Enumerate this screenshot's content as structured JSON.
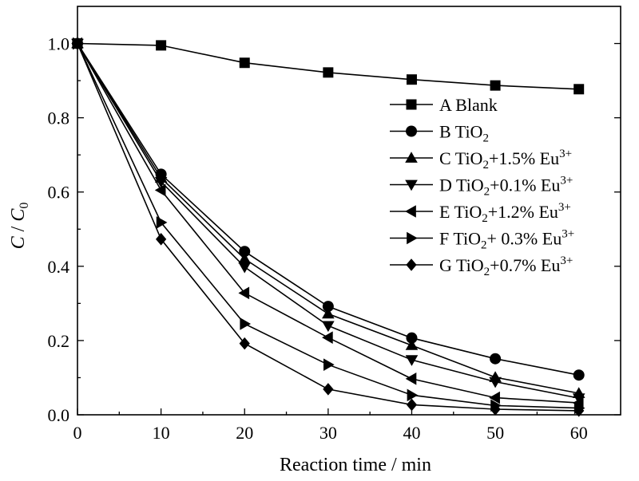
{
  "chart_data": {
    "type": "line",
    "xlabel": "Reaction time / min",
    "ylabel": "C / C0",
    "ylabel_parts": {
      "c": "C",
      "slash": " / ",
      "c0": "C",
      "sub": "0"
    },
    "xlim": [
      0,
      65
    ],
    "ylim": [
      0,
      1.1
    ],
    "x_ticks": [
      0,
      10,
      20,
      30,
      40,
      50,
      60
    ],
    "x_tick_labels": [
      "0",
      "10",
      "20",
      "30",
      "40",
      "50",
      "60"
    ],
    "y_ticks": [
      0.0,
      0.2,
      0.4,
      0.6,
      0.8,
      1.0
    ],
    "y_tick_labels": [
      "0.0",
      "0.2",
      "0.4",
      "0.6",
      "0.8",
      "1.0"
    ],
    "grid": false,
    "legend_position": "right",
    "x": [
      0,
      10,
      20,
      30,
      40,
      50,
      60
    ],
    "series": [
      {
        "name": "A Blank",
        "marker": "square",
        "label_parts": [
          "A Blank",
          "",
          "",
          ""
        ],
        "values": [
          1.0,
          0.995,
          0.948,
          0.922,
          0.903,
          0.887,
          0.877
        ]
      },
      {
        "name": "B TiO2",
        "marker": "circle",
        "label_parts": [
          "B TiO",
          "2",
          "",
          ""
        ],
        "values": [
          1.0,
          0.648,
          0.44,
          0.292,
          0.207,
          0.151,
          0.107
        ]
      },
      {
        "name": "C TiO2+1.5% Eu3+",
        "marker": "triangle-up",
        "label_parts": [
          "C TiO",
          "2",
          "+1.5% Eu",
          "3+"
        ],
        "values": [
          1.0,
          0.638,
          0.42,
          0.272,
          0.187,
          0.101,
          0.058
        ]
      },
      {
        "name": "D TiO2+0.1% Eu3+",
        "marker": "triangle-down",
        "label_parts": [
          "D TiO",
          "2",
          "+0.1% Eu",
          "3+"
        ],
        "values": [
          1.0,
          0.628,
          0.398,
          0.24,
          0.148,
          0.089,
          0.045
        ]
      },
      {
        "name": "E TiO2+1.2% Eu3+",
        "marker": "triangle-left",
        "label_parts": [
          "E TiO",
          "2",
          "+1.2% Eu",
          "3+"
        ],
        "values": [
          1.0,
          0.605,
          0.328,
          0.208,
          0.097,
          0.046,
          0.032
        ]
      },
      {
        "name": "F TiO2+ 0.3% Eu3+",
        "marker": "triangle-right",
        "label_parts": [
          "F TiO",
          "2",
          "+ 0.3% Eu",
          "3+"
        ],
        "values": [
          1.0,
          0.518,
          0.245,
          0.135,
          0.053,
          0.025,
          0.018
        ]
      },
      {
        "name": "G TiO2+0.7% Eu3+",
        "marker": "diamond",
        "label_parts": [
          "G TiO",
          "2",
          "+0.7% Eu",
          "3+"
        ],
        "values": [
          1.0,
          0.473,
          0.192,
          0.069,
          0.027,
          0.015,
          0.011
        ]
      }
    ]
  }
}
